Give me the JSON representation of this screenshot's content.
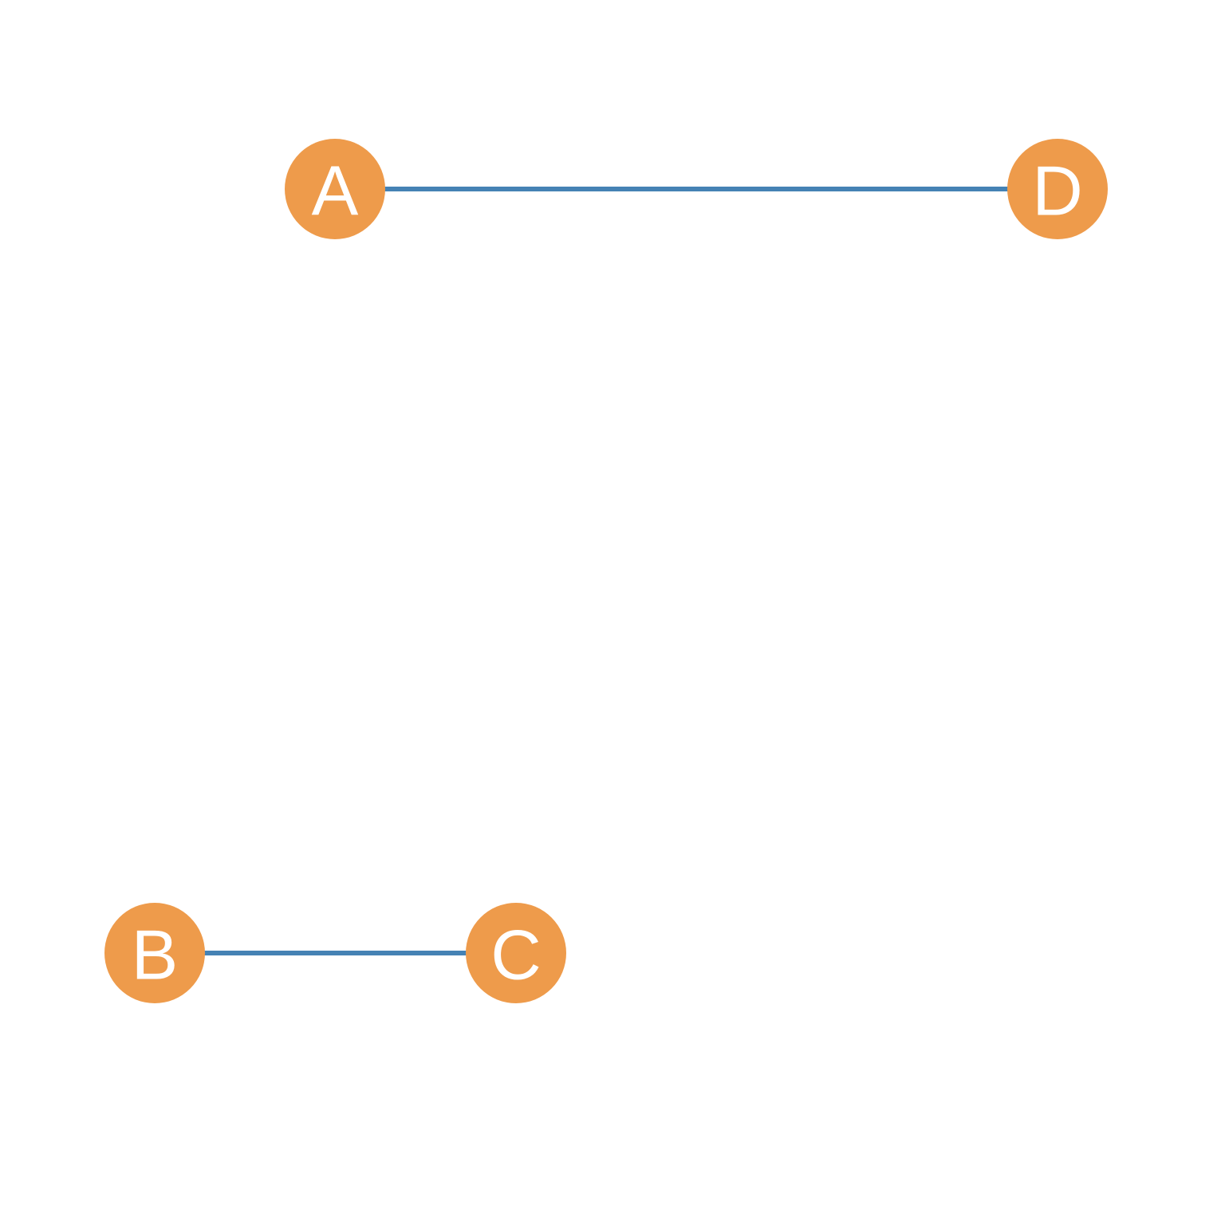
{
  "graph": {
    "colors": {
      "node_fill": "#ee9b4b",
      "edge": "#4582b4",
      "label": "#ffffff",
      "background": "#ffffff"
    },
    "nodes": [
      {
        "id": "A",
        "label": "A"
      },
      {
        "id": "B",
        "label": "B"
      },
      {
        "id": "C",
        "label": "C"
      },
      {
        "id": "D",
        "label": "D"
      }
    ],
    "edges": [
      {
        "source": "A",
        "target": "D"
      },
      {
        "source": "B",
        "target": "C"
      }
    ]
  }
}
